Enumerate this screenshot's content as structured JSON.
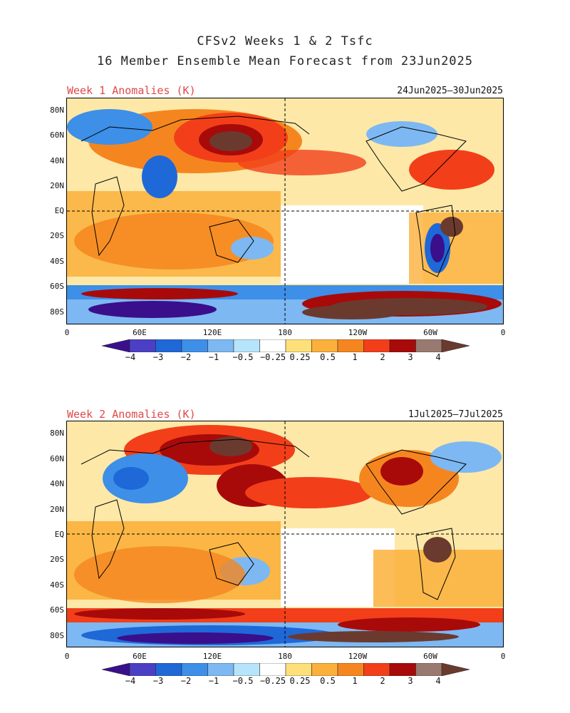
{
  "title_line1": "CFSv2 Weeks 1 & 2 Tsfc",
  "title_line2": "16 Member Ensemble Mean Forecast from 23Jun2025",
  "lat_labels": [
    "80N",
    "60N",
    "40N",
    "20N",
    "EQ",
    "20S",
    "40S",
    "60S",
    "80S"
  ],
  "lon_labels": [
    "0",
    "60E",
    "120E",
    "180",
    "120W",
    "60W",
    "0"
  ],
  "colorbar": {
    "colors": [
      "#3a0f8c",
      "#4b3fc6",
      "#1f68d8",
      "#3d8fe8",
      "#7db8f2",
      "#b6e4fa",
      "#ffffff",
      "#fde07a",
      "#fbb03b",
      "#f5861f",
      "#f23f1a",
      "#a80a0a",
      "#9a7a70",
      "#6b3a2e"
    ],
    "labels": [
      "−4",
      "−3",
      "−2",
      "−1",
      "−0.5",
      "−0.25",
      "0.25",
      "0.5",
      "1",
      "2",
      "3",
      "4"
    ]
  },
  "panels": [
    {
      "heading": "Week 1 Anomalies (K)",
      "dates": "24Jun2025—30Jun2025"
    },
    {
      "heading": "Week 2 Anomalies (K)",
      "dates": "1Jul2025—7Jul2025"
    }
  ]
}
